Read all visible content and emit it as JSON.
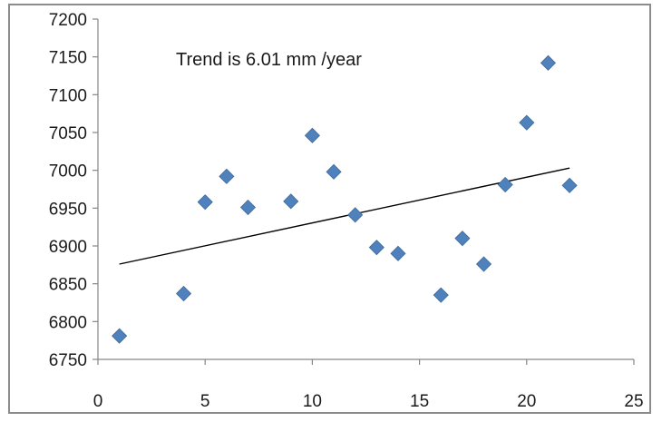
{
  "chart_data": {
    "type": "scatter",
    "title": "",
    "xlabel": "",
    "ylabel": "",
    "xlim": [
      0,
      25
    ],
    "ylim": [
      6750,
      7200
    ],
    "x_ticks": [
      0,
      5,
      10,
      15,
      20,
      25
    ],
    "y_ticks": [
      6750,
      6800,
      6850,
      6900,
      6950,
      7000,
      7050,
      7100,
      7150,
      7200
    ],
    "grid": false,
    "legend": "none",
    "marker_color": "#4f81bd",
    "marker_shape": "diamond",
    "series": [
      {
        "points": [
          {
            "x": 1,
            "y": 6781
          },
          {
            "x": 4,
            "y": 6837
          },
          {
            "x": 5,
            "y": 6958
          },
          {
            "x": 6,
            "y": 6992
          },
          {
            "x": 7,
            "y": 6951
          },
          {
            "x": 9,
            "y": 6959
          },
          {
            "x": 10,
            "y": 7046
          },
          {
            "x": 11,
            "y": 6998
          },
          {
            "x": 12,
            "y": 6941
          },
          {
            "x": 13,
            "y": 6898
          },
          {
            "x": 14,
            "y": 6890
          },
          {
            "x": 16,
            "y": 6835
          },
          {
            "x": 17,
            "y": 6910
          },
          {
            "x": 18,
            "y": 6876
          },
          {
            "x": 19,
            "y": 6981
          },
          {
            "x": 20,
            "y": 7063
          },
          {
            "x": 21,
            "y": 7142
          },
          {
            "x": 22,
            "y": 6980
          }
        ]
      }
    ],
    "trendline": {
      "type": "linear",
      "color": "#000000",
      "points": [
        {
          "x": 1,
          "y": 6876
        },
        {
          "x": 22,
          "y": 7003
        }
      ]
    },
    "annotations": [
      {
        "text": "Trend is 6.01 mm /year"
      }
    ]
  }
}
